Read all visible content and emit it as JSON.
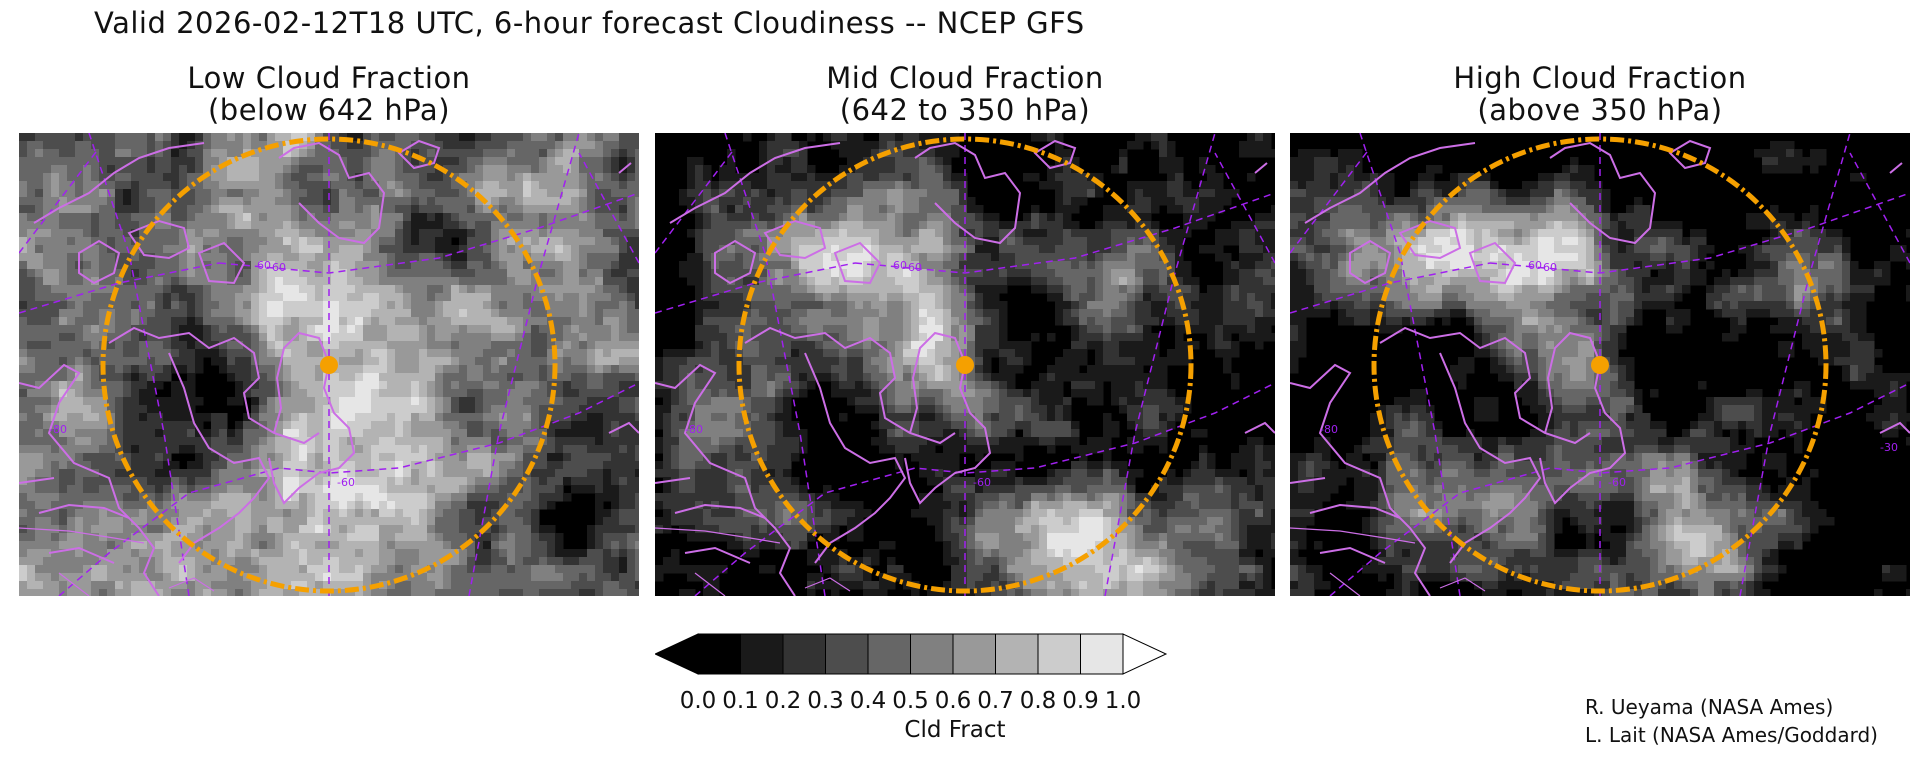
{
  "title": "Valid 2026-02-12T18 UTC, 6-hour forecast Cloudiness -- NCEP GFS",
  "panels": [
    {
      "title_line1": "Low Cloud Fraction",
      "title_line2": "(below 642 hPa)",
      "seed": 11,
      "field": "low",
      "grid_labels": [
        "60",
        "60",
        "-80",
        "-60"
      ]
    },
    {
      "title_line1": "Mid Cloud Fraction",
      "title_line2": "(642 to 350 hPa)",
      "seed": 23,
      "field": "mid",
      "grid_labels": [
        "60",
        "60",
        "-80",
        "-60"
      ]
    },
    {
      "title_line1": "High Cloud Fraction",
      "title_line2": "(above 350 hPa)",
      "seed": 37,
      "field": "high",
      "grid_labels": [
        "60",
        "60",
        "-80",
        "-60",
        "-30"
      ]
    }
  ],
  "map_style": {
    "coast_color": "#cc6ee6",
    "grid_color": "#a020f0",
    "ring_color": "#f5a000",
    "point_color": "#f5a000"
  },
  "colorbar": {
    "label": "Cld Fract",
    "ticks": [
      "0.0",
      "0.1",
      "0.2",
      "0.3",
      "0.4",
      "0.5",
      "0.6",
      "0.7",
      "0.8",
      "0.9",
      "1.0"
    ],
    "colors": [
      "#000000",
      "#1a1a1a",
      "#333333",
      "#4d4d4d",
      "#666666",
      "#808080",
      "#999999",
      "#b3b3b3",
      "#cccccc",
      "#e6e6e6"
    ],
    "under_color": "#000000",
    "over_color": "#ffffff"
  },
  "credits": [
    "R. Ueyama (NASA Ames)",
    "L. Lait (NASA Ames/Goddard)"
  ]
}
